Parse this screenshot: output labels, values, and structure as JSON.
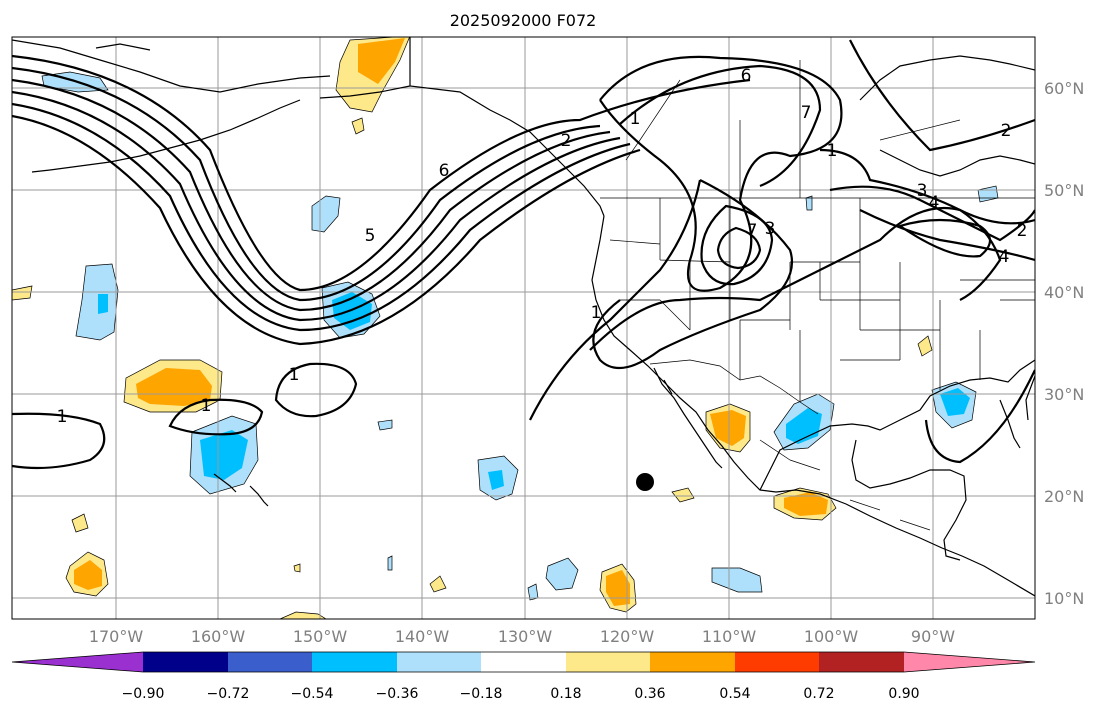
{
  "title": "2025092000 F072",
  "longitude_labels": [
    "170°W",
    "160°W",
    "150°W",
    "140°W",
    "130°W",
    "120°W",
    "110°W",
    "100°W",
    "90°W"
  ],
  "latitude_labels": [
    "60°N",
    "50°N",
    "40°N",
    "30°N",
    "20°N",
    "10°N"
  ],
  "contour_labels": [
    "1",
    "1",
    "1",
    "1",
    "6",
    "5",
    "2",
    "1",
    "6",
    "7",
    "1",
    "3",
    "7",
    "3",
    "2",
    "4",
    "4",
    "2"
  ],
  "colorbar": {
    "ticks": [
      "−0.90",
      "−0.72",
      "−0.54",
      "−0.36",
      "−0.18",
      "0.18",
      "0.36",
      "0.54",
      "0.72",
      "0.90"
    ],
    "colors": [
      "#9b30d0",
      "#00008b",
      "#3a5fcd",
      "#00bfff",
      "#aee0fb",
      "#ffffff",
      "#fde88a",
      "#ffa500",
      "#ff3c00",
      "#b22222",
      "#ff88aa"
    ]
  },
  "colors": {
    "positive_inner": "#ffa500",
    "positive_outer": "#fde88a",
    "negative_inner": "#00bfff",
    "negative_outer": "#aee0fb"
  },
  "marker": "storm-position-dot"
}
